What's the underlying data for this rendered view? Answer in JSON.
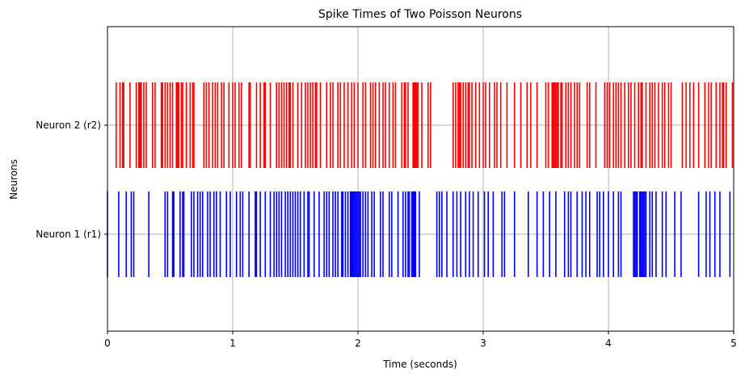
{
  "chart_data": {
    "type": "eventplot",
    "title": "Spike Times of Two Poisson Neurons",
    "xlabel": "Time (seconds)",
    "ylabel": "Neurons",
    "xlim": [
      0,
      5
    ],
    "x_ticks": [
      "0",
      "1",
      "2",
      "3",
      "4",
      "5"
    ],
    "grid": true,
    "series": [
      {
        "name": "Neuron 1 (r1)",
        "color": "#0000ff",
        "spike_times": [
          0.0,
          0.09,
          0.15,
          0.19,
          0.21,
          0.33,
          0.46,
          0.48,
          0.52,
          0.53,
          0.58,
          0.6,
          0.61,
          0.67,
          0.69,
          0.72,
          0.74,
          0.76,
          0.8,
          0.82,
          0.85,
          0.87,
          0.9,
          0.95,
          0.98,
          1.03,
          1.06,
          1.08,
          1.13,
          1.18,
          1.19,
          1.22,
          1.26,
          1.3,
          1.33,
          1.35,
          1.37,
          1.39,
          1.42,
          1.44,
          1.46,
          1.48,
          1.5,
          1.52,
          1.54,
          1.57,
          1.6,
          1.61,
          1.65,
          1.69,
          1.73,
          1.75,
          1.77,
          1.8,
          1.82,
          1.84,
          1.87,
          1.88,
          1.9,
          1.92,
          1.94,
          1.95,
          1.96,
          1.97,
          1.98,
          1.99,
          2.0,
          2.01,
          2.02,
          2.04,
          2.06,
          2.08,
          2.11,
          2.13,
          2.18,
          2.2,
          2.25,
          2.27,
          2.32,
          2.36,
          2.38,
          2.4,
          2.41,
          2.43,
          2.44,
          2.45,
          2.46,
          2.49,
          2.63,
          2.65,
          2.67,
          2.71,
          2.76,
          2.79,
          2.82,
          2.86,
          2.89,
          2.92,
          2.96,
          3.01,
          3.04,
          3.08,
          3.15,
          3.17,
          3.25,
          3.36,
          3.43,
          3.48,
          3.53,
          3.58,
          3.65,
          3.68,
          3.7,
          3.75,
          3.79,
          3.82,
          3.85,
          3.91,
          3.93,
          3.96,
          4.0,
          4.04,
          4.08,
          4.1,
          4.2,
          4.21,
          4.22,
          4.23,
          4.25,
          4.26,
          4.27,
          4.28,
          4.29,
          4.3,
          4.33,
          4.35,
          4.38,
          4.43,
          4.46,
          4.53,
          4.58,
          4.72,
          4.78,
          4.81,
          4.85,
          4.89,
          4.97
        ]
      },
      {
        "name": "Neuron 2 (r2)",
        "color": "#ff0000",
        "spike_times": [
          0.07,
          0.1,
          0.12,
          0.13,
          0.18,
          0.23,
          0.25,
          0.26,
          0.27,
          0.29,
          0.31,
          0.36,
          0.38,
          0.43,
          0.44,
          0.46,
          0.48,
          0.5,
          0.52,
          0.55,
          0.56,
          0.57,
          0.59,
          0.6,
          0.63,
          0.66,
          0.68,
          0.69,
          0.77,
          0.79,
          0.81,
          0.84,
          0.86,
          0.88,
          0.91,
          0.93,
          0.97,
          1.0,
          1.02,
          1.05,
          1.07,
          1.13,
          1.14,
          1.19,
          1.22,
          1.25,
          1.26,
          1.3,
          1.35,
          1.37,
          1.39,
          1.41,
          1.43,
          1.45,
          1.46,
          1.48,
          1.52,
          1.55,
          1.58,
          1.6,
          1.62,
          1.64,
          1.66,
          1.67,
          1.7,
          1.75,
          1.78,
          1.8,
          1.84,
          1.86,
          1.89,
          1.92,
          1.95,
          1.97,
          2.0,
          2.04,
          2.06,
          2.1,
          2.12,
          2.14,
          2.17,
          2.2,
          2.22,
          2.25,
          2.28,
          2.3,
          2.35,
          2.37,
          2.38,
          2.4,
          2.44,
          2.45,
          2.46,
          2.47,
          2.48,
          2.51,
          2.56,
          2.58,
          2.76,
          2.78,
          2.8,
          2.81,
          2.82,
          2.84,
          2.86,
          2.88,
          2.89,
          2.91,
          2.94,
          2.97,
          3.0,
          3.02,
          3.05,
          3.09,
          3.11,
          3.14,
          3.19,
          3.25,
          3.3,
          3.35,
          3.38,
          3.43,
          3.5,
          3.52,
          3.55,
          3.56,
          3.57,
          3.58,
          3.59,
          3.6,
          3.62,
          3.63,
          3.66,
          3.68,
          3.7,
          3.73,
          3.75,
          3.77,
          3.83,
          3.85,
          3.9,
          3.97,
          3.99,
          4.01,
          4.04,
          4.06,
          4.08,
          4.1,
          4.13,
          4.16,
          4.18,
          4.21,
          4.24,
          4.26,
          4.27,
          4.3,
          4.33,
          4.35,
          4.37,
          4.4,
          4.43,
          4.45,
          4.48,
          4.5,
          4.59,
          4.62,
          4.65,
          4.68,
          4.72,
          4.77,
          4.8,
          4.82,
          4.86,
          4.89,
          4.91,
          4.92,
          4.94,
          4.99
        ]
      }
    ]
  }
}
